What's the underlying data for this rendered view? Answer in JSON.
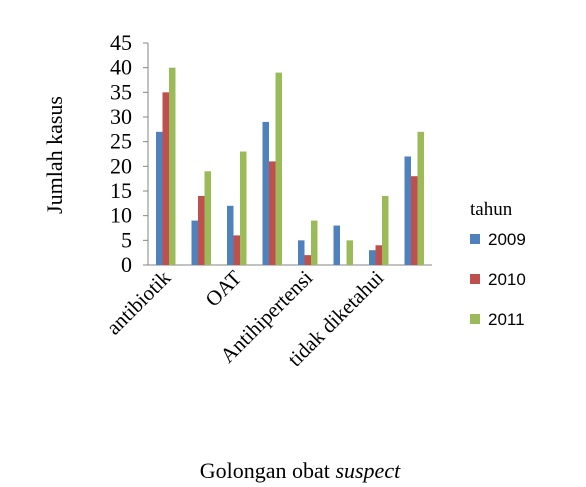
{
  "chart_data": {
    "type": "bar",
    "ylabel": "Jumlah kasus",
    "xlabel": "Golongan obat",
    "xlabel_italic": "suspect",
    "legend_title": "tahun",
    "categories": [
      "antibiotik",
      null,
      "OAT",
      null,
      "Antihipertensi",
      null,
      "tidak diketahui",
      null
    ],
    "series": [
      {
        "name": "2009",
        "color": "#4f81bd",
        "values": [
          27,
          9,
          12,
          29,
          5,
          8,
          3,
          22
        ]
      },
      {
        "name": "2010",
        "color": "#c0504d",
        "values": [
          35,
          14,
          6,
          21,
          2,
          0,
          4,
          18
        ]
      },
      {
        "name": "2011",
        "color": "#9bbb59",
        "values": [
          40,
          19,
          23,
          39,
          9,
          5,
          14,
          27
        ]
      }
    ],
    "ylim": [
      0,
      45
    ],
    "yticks": [
      0,
      5,
      10,
      15,
      20,
      25,
      30,
      35,
      40,
      45
    ],
    "legend": "right"
  }
}
